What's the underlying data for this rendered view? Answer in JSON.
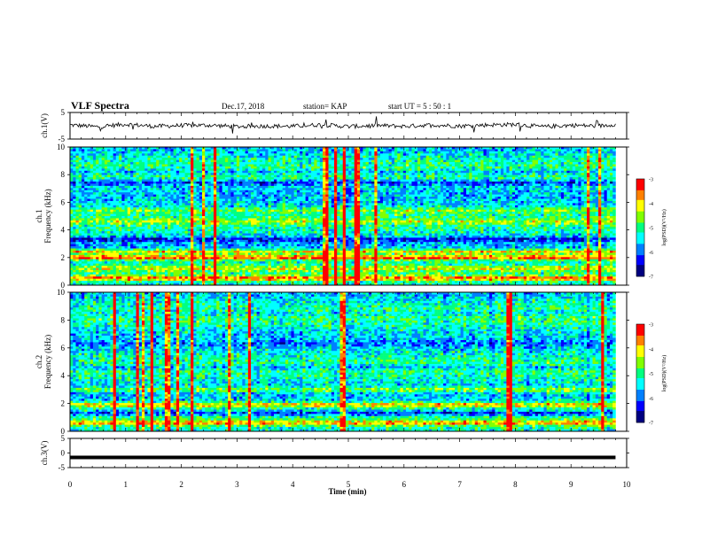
{
  "header": {
    "title": "VLF Spectra",
    "date": "Dec.17, 2018",
    "station": "station= KAP",
    "start": "start  UT =   5  : 50 : 1"
  },
  "colors": {
    "colormap": [
      "#000080",
      "#0000ff",
      "#0080ff",
      "#00ffff",
      "#00ff80",
      "#80ff00",
      "#ffff00",
      "#ff8000",
      "#ff0000",
      "#ffffff"
    ]
  },
  "chart_data": [
    {
      "type": "line",
      "panel": "ch1-waveform",
      "ylabel": "ch.1(V)",
      "ylim": [
        -5,
        5
      ],
      "yticks": [
        "5",
        "-5"
      ],
      "x": [
        0,
        0.5,
        1,
        1.5,
        2,
        2.5,
        3,
        3.5,
        4,
        4.5,
        5,
        5.5,
        6,
        6.5,
        7,
        7.5,
        8,
        8.5,
        9,
        9.5,
        9.8
      ],
      "y": [
        0.3,
        -0.4,
        0.6,
        -0.2,
        0.1,
        0.2,
        -0.3,
        -0.1,
        -0.2,
        0.4,
        -0.3,
        0.1,
        -0.2,
        0.3,
        -0.1,
        0.3,
        0.5,
        -0.4,
        0.2,
        -0.1,
        0.6
      ]
    },
    {
      "type": "heatmap",
      "panel": "ch1-spectrogram",
      "ylabel": "ch.1\nFrequency (kHz)",
      "ylim": [
        0,
        10
      ],
      "yticks": [
        "0",
        "2",
        "4",
        "6",
        "8",
        "10"
      ],
      "colorbar": {
        "label": "log(PSD)(V²/Hz)",
        "ticks": [
          "-3",
          "-4",
          "-5",
          "-6",
          "-7"
        ],
        "range": [
          -7,
          -3
        ]
      },
      "bands": [
        {
          "f_khz": 0.5,
          "level": 0.85
        },
        {
          "f_khz": 1.2,
          "level": 0.7
        },
        {
          "f_khz": 2.0,
          "level": 0.9
        },
        {
          "f_khz": 2.4,
          "level": 0.75
        },
        {
          "f_khz": 3.3,
          "level": 0.15
        },
        {
          "f_khz": 4.6,
          "level": 0.65
        },
        {
          "f_khz": 5.4,
          "level": 0.6
        },
        {
          "f_khz": 7.4,
          "level": 0.2
        },
        {
          "f_khz": 8.2,
          "level": 0.35
        }
      ]
    },
    {
      "type": "heatmap",
      "panel": "ch2-spectrogram",
      "ylabel": "ch.2\nFrequency (kHz)",
      "ylim": [
        0,
        10
      ],
      "yticks": [
        "0",
        "2",
        "4",
        "6",
        "8",
        "10"
      ],
      "colorbar": {
        "label": "log(PSD)(V²/Hz)",
        "ticks": [
          "-3",
          "-4",
          "-5",
          "-6",
          "-7"
        ],
        "range": [
          -7,
          -3
        ]
      },
      "bands": [
        {
          "f_khz": 0.6,
          "level": 0.8
        },
        {
          "f_khz": 1.3,
          "level": 0.2
        },
        {
          "f_khz": 1.9,
          "level": 0.75
        },
        {
          "f_khz": 3.0,
          "level": 0.6
        },
        {
          "f_khz": 4.6,
          "level": 0.35
        },
        {
          "f_khz": 6.3,
          "level": 0.25
        },
        {
          "f_khz": 8.5,
          "level": 0.4
        }
      ]
    },
    {
      "type": "line",
      "panel": "ch3-waveform",
      "ylabel": "ch.3(V)",
      "ylim": [
        -5,
        5
      ],
      "yticks": [
        "5",
        "0",
        "-5"
      ],
      "x": [
        0,
        9.8
      ],
      "y": [
        -1.5,
        -1.5
      ]
    }
  ],
  "xaxis": {
    "xlabel": "Time (min)",
    "xlim": [
      0,
      10
    ],
    "ticks": [
      "0",
      "1",
      "2",
      "3",
      "4",
      "5",
      "6",
      "7",
      "8",
      "9",
      "10"
    ]
  }
}
